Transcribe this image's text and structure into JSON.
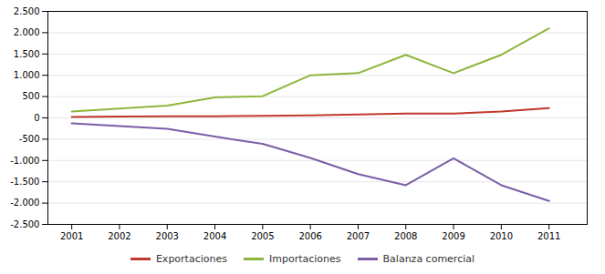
{
  "chart_data": {
    "type": "line",
    "x": [
      2001,
      2002,
      2003,
      2004,
      2005,
      2006,
      2007,
      2008,
      2009,
      2010,
      2011
    ],
    "series": [
      {
        "name": "Exportaciones",
        "color": "#c0392b",
        "values": [
          20,
          30,
          35,
          40,
          50,
          60,
          80,
          100,
          100,
          150,
          230
        ]
      },
      {
        "name": "Importaciones",
        "color": "#8db63c",
        "values": [
          150,
          220,
          290,
          480,
          510,
          1000,
          1050,
          1480,
          1050,
          1480,
          2100
        ]
      },
      {
        "name": "Balanza comercial",
        "color": "#7b5ea7",
        "values": [
          -130,
          -190,
          -255,
          -440,
          -610,
          -940,
          -1320,
          -1580,
          -950,
          -1580,
          -1950
        ]
      }
    ],
    "xlim": [
      2000.5,
      2011.8
    ],
    "xticks": [
      2001,
      2002,
      2003,
      2004,
      2005,
      2006,
      2007,
      2008,
      2009,
      2010,
      2011
    ],
    "ylim": [
      -2500,
      2500
    ],
    "yticks": [
      {
        "value": -2500,
        "label": "-2.500"
      },
      {
        "value": -2000,
        "label": "-2.000"
      },
      {
        "value": -1500,
        "label": "-1.500"
      },
      {
        "value": -1000,
        "label": "-1.000"
      },
      -500,
      0,
      500,
      {
        "value": 1000,
        "label": "1.000"
      },
      {
        "value": 1500,
        "label": "1.500"
      },
      {
        "value": 2000,
        "label": "2.000"
      },
      {
        "value": 2500,
        "label": "2.500"
      }
    ],
    "grid": "y",
    "legend": "bottom"
  }
}
